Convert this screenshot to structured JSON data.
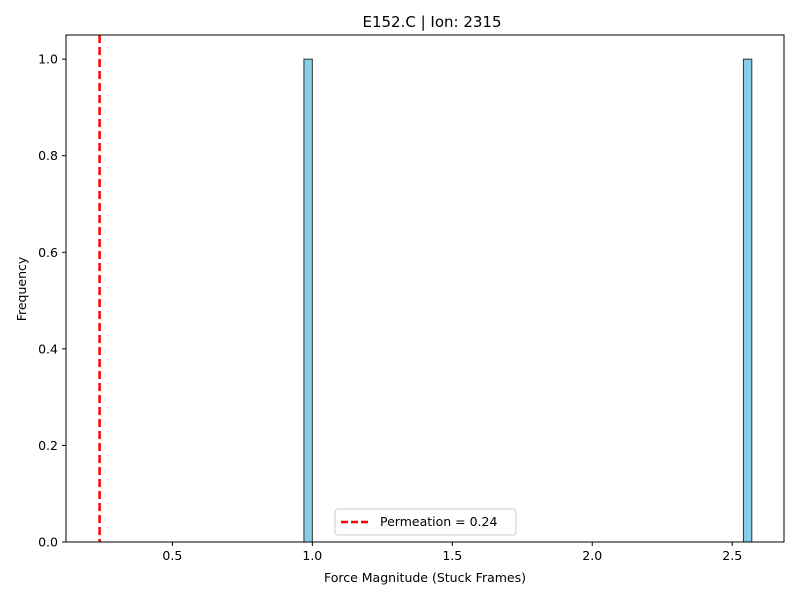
{
  "chart_data": {
    "type": "bar",
    "title": "E152.C | Ion: 2315",
    "xlabel": "Force Magnitude (Stuck Frames)",
    "ylabel": "Frequency",
    "xlim": [
      0.12,
      2.685
    ],
    "ylim": [
      0,
      1.05
    ],
    "xticks": [
      0.5,
      1.0,
      1.5,
      2.0,
      2.5
    ],
    "xtick_labels": [
      "0.5",
      "1.0",
      "1.5",
      "2.0",
      "2.5"
    ],
    "yticks": [
      0.0,
      0.2,
      0.4,
      0.6,
      0.8,
      1.0
    ],
    "ytick_labels": [
      "0.0",
      "0.2",
      "0.4",
      "0.6",
      "0.8",
      "1.0"
    ],
    "bars": [
      {
        "x_start": 0.97,
        "x_end": 1.0,
        "value": 1
      },
      {
        "x_start": 2.54,
        "x_end": 2.57,
        "value": 1
      }
    ],
    "bar_color": "#87ceeb",
    "bar_edge_color": "#333333",
    "reference_line": {
      "x": 0.24,
      "label": "Permeation = 0.24",
      "color": "#ff0000",
      "style": "dashed"
    },
    "legend": {
      "placement": "lower-center"
    },
    "grid": false
  }
}
